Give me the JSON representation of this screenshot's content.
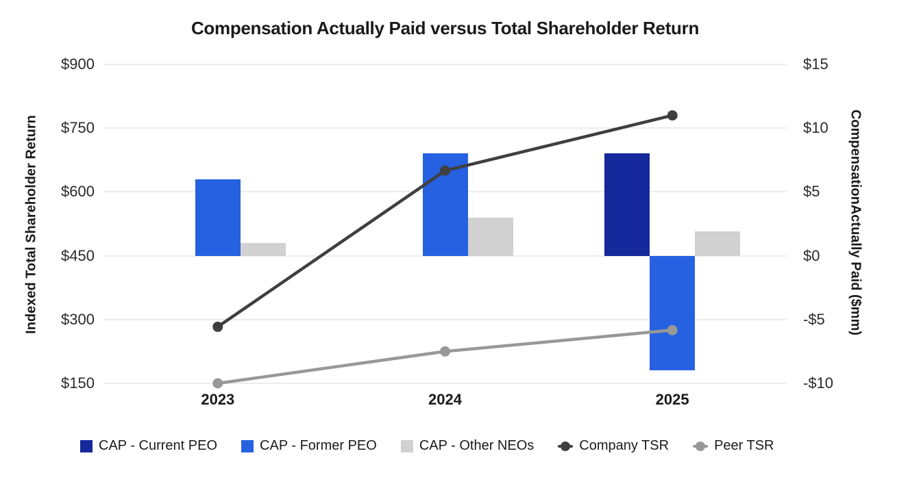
{
  "title": "Compensation Actually Paid versus Total Shareholder Return",
  "colors": {
    "cap_current_peo": "#15289c",
    "cap_former_peo": "#2661e1",
    "cap_other_neos": "#d1d1d1",
    "company_tsr": "#3f3f3f",
    "peer_tsr": "#989898",
    "gridline": "#ececec",
    "text": "#1a1a1a"
  },
  "chart_data": {
    "type": "combo",
    "subtype": "grouped bars + lines, dual y-axis",
    "title": "Compensation Actually Paid versus Total Shareholder Return",
    "categories": [
      "2023",
      "2024",
      "2025"
    ],
    "bar_series": [
      {
        "name": "CAP - Current PEO",
        "axis": "right",
        "color": "#15289c",
        "values": [
          null,
          null,
          8
        ]
      },
      {
        "name": "CAP - Former PEO",
        "axis": "right",
        "color": "#2661e1",
        "values": [
          6,
          8,
          -9
        ]
      },
      {
        "name": "CAP - Other NEOs",
        "axis": "right",
        "color": "#d1d1d1",
        "values": [
          1,
          3,
          1.9
        ]
      }
    ],
    "line_series": [
      {
        "name": "Company TSR",
        "axis": "left",
        "color": "#3f3f3f",
        "values": [
          283,
          650,
          780
        ]
      },
      {
        "name": "Peer TSR",
        "axis": "left",
        "color": "#989898",
        "values": [
          150,
          225,
          275
        ]
      }
    ],
    "left_axis": {
      "label": "Indexed Total Shareholder Return",
      "min": 150,
      "max": 900,
      "step": 150,
      "ticks": [
        "$900",
        "$750",
        "$600",
        "$450",
        "$300",
        "$150"
      ]
    },
    "right_axis": {
      "label": "CompensationActually Paid ($mm)",
      "min": -10,
      "max": 15,
      "step": 5,
      "ticks": [
        "$15",
        "$10",
        "$5",
        "$0",
        "-$5",
        "-$10"
      ]
    },
    "grid": "horizontal gridlines on",
    "legend_position": "bottom",
    "legend": {
      "items": [
        {
          "label": "CAP - Current PEO",
          "marker": "square",
          "color": "#15289c"
        },
        {
          "label": "CAP - Former PEO",
          "marker": "square",
          "color": "#2661e1"
        },
        {
          "label": "CAP - Other NEOs",
          "marker": "square",
          "color": "#d1d1d1"
        },
        {
          "label": "Company TSR",
          "marker": "line-dot",
          "color": "#3f3f3f"
        },
        {
          "label": "Peer TSR",
          "marker": "line-dot",
          "color": "#989898"
        }
      ]
    }
  }
}
